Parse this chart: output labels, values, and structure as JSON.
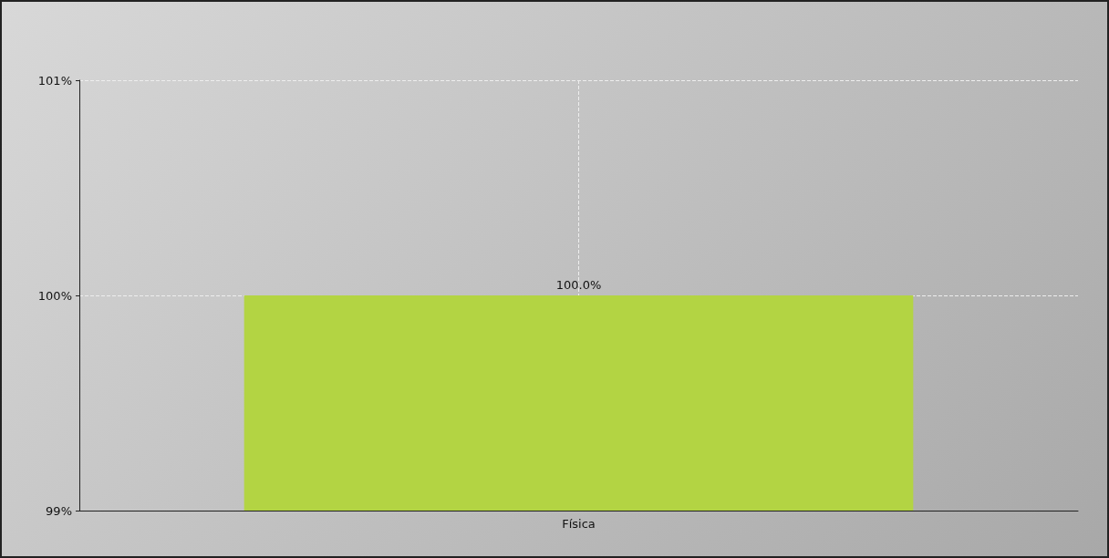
{
  "chart_data": {
    "type": "bar",
    "categories": [
      "Física"
    ],
    "values": [
      100
    ],
    "color": "#b3d443",
    "value_labels": [
      "100.0%"
    ],
    "ylim": [
      99,
      101
    ],
    "yticks": [
      {
        "value": 99,
        "label": "99%"
      },
      {
        "value": 100,
        "label": "100%"
      },
      {
        "value": 101,
        "label": "101%"
      }
    ],
    "grid": true
  }
}
